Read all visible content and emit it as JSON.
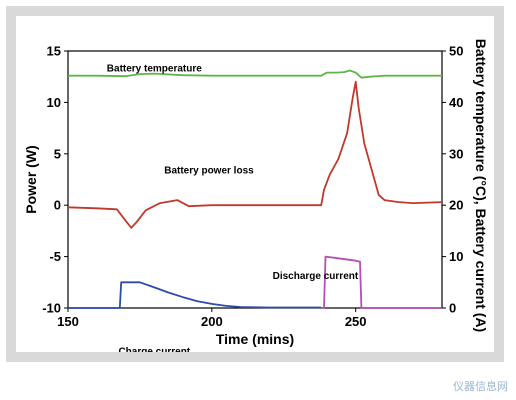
{
  "chart_data": {
    "type": "line",
    "xlabel": "Time (mins)",
    "ylabel": "Power (W)",
    "ylabel_right": "Battery temperature (°C), Battery current (A)",
    "xlim": [
      150,
      280
    ],
    "ylim": [
      -10,
      15
    ],
    "ylim_right": [
      0,
      50
    ],
    "xticks": [
      150,
      200,
      250
    ],
    "yticks": [
      -10,
      -5,
      0,
      5,
      10,
      15
    ],
    "yticks_right": [
      0,
      10,
      20,
      30,
      40,
      50
    ],
    "grid": false,
    "series": [
      {
        "name": "Battery temperature",
        "axis": "right",
        "color": "#5fb548",
        "x": [
          150,
          160,
          170,
          175,
          180,
          190,
          200,
          220,
          238,
          240,
          243,
          246,
          248,
          250,
          252,
          255,
          260,
          270,
          280
        ],
        "y": [
          45.2,
          45.2,
          45.1,
          45.5,
          45.6,
          45.3,
          45.2,
          45.2,
          45.2,
          45.8,
          45.8,
          45.9,
          46.2,
          45.8,
          44.8,
          45.0,
          45.2,
          45.2,
          45.2
        ]
      },
      {
        "name": "Battery power loss",
        "axis": "left",
        "color": "#c0392b",
        "x": [
          150,
          160,
          167,
          170,
          172,
          174,
          177,
          182,
          188,
          192,
          200,
          220,
          238,
          239,
          241,
          244,
          247,
          249,
          250,
          251,
          253,
          256,
          258,
          260,
          265,
          270,
          280
        ],
        "y": [
          -0.2,
          -0.3,
          -0.4,
          -1.5,
          -2.2,
          -1.6,
          -0.5,
          0.2,
          0.5,
          -0.1,
          0.0,
          0.0,
          0.0,
          1.5,
          3.0,
          4.5,
          7.0,
          10.5,
          12.0,
          9.5,
          6.0,
          3.0,
          1.0,
          0.5,
          0.3,
          0.2,
          0.3
        ]
      },
      {
        "name": "Charge current",
        "axis": "right",
        "color": "#2f4aa8",
        "x": [
          150,
          168,
          168.5,
          175,
          180,
          185,
          190,
          195,
          200,
          205,
          210,
          220,
          238
        ],
        "y": [
          0,
          0,
          5,
          5,
          4,
          3,
          2.1,
          1.3,
          0.8,
          0.4,
          0.2,
          0.1,
          0.1
        ]
      },
      {
        "name": "Discharge current",
        "axis": "right",
        "color": "#b44fb4",
        "x": [
          238,
          239,
          239.5,
          245,
          250,
          251.5,
          252,
          280
        ],
        "y": [
          0,
          0,
          10,
          9.6,
          9.2,
          9.0,
          0,
          0
        ]
      }
    ],
    "annotations": [
      {
        "text": "Battery temperature",
        "x": 180,
        "y": 13.0
      },
      {
        "text": "Battery power loss",
        "x": 199,
        "y": 3.1
      },
      {
        "text": "Discharge current",
        "x": 236,
        "y": -7.2
      },
      {
        "text": "Charge current",
        "x": 180,
        "y": -14.5
      }
    ]
  },
  "watermark": "仪器信息网"
}
